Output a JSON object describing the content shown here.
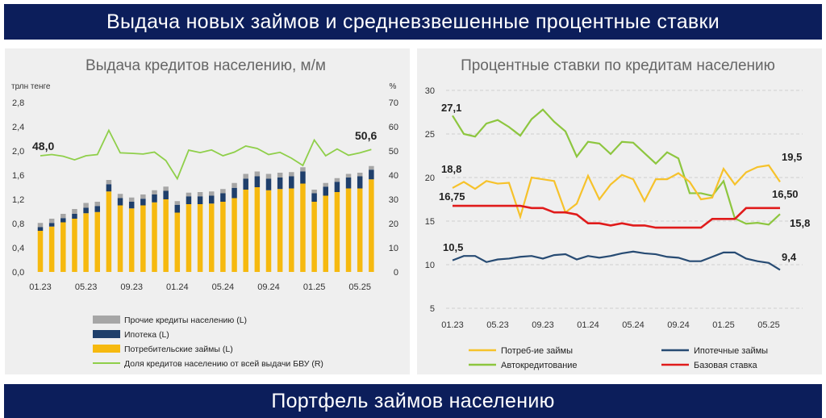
{
  "header": {
    "title": "Выдача новых займов и средневзвешенные процентные ставки"
  },
  "footer": {
    "title": "Портфель займов населению"
  },
  "colors": {
    "banner": "#0c1e5b",
    "panel": "#efefef",
    "consumer": "#f6b90f",
    "mortgage": "#1f3f6b",
    "other": "#a6a6a6",
    "share": "#8fcf4a",
    "consumer_rate": "#f6c22b",
    "mortgage_rate": "#274b73",
    "auto_rate": "#8dc63f",
    "base_rate": "#e01b1b"
  },
  "chart_data": [
    {
      "type": "bar",
      "title": "Выдача кредитов населению, м/м",
      "ylabel": "трлн тенге",
      "ylabel_right": "%",
      "ylim": [
        0,
        2.8
      ],
      "ylim_right": [
        0,
        70
      ],
      "yticks": [
        "2,8",
        "2,4",
        "2,0",
        "1,6",
        "1,2",
        "0,8",
        "0,4",
        "0,0"
      ],
      "yticks_right": [
        "70",
        "60",
        "50",
        "40",
        "30",
        "20",
        "10",
        "0"
      ],
      "x_tick_labels": [
        "01.23",
        "05.23",
        "09.23",
        "01.24",
        "05.24",
        "09.24",
        "01.25",
        "05.25"
      ],
      "x_tick_index": [
        0,
        4,
        8,
        12,
        16,
        20,
        24,
        28
      ],
      "n_categories": 30,
      "series": [
        {
          "name": "Потребительские займы (L)",
          "kind": "bar",
          "values": [
            0.68,
            0.75,
            0.82,
            0.88,
            0.97,
            0.99,
            1.33,
            1.1,
            1.05,
            1.1,
            1.15,
            1.2,
            0.98,
            1.12,
            1.12,
            1.13,
            1.16,
            1.22,
            1.36,
            1.4,
            1.35,
            1.37,
            1.38,
            1.46,
            1.16,
            1.26,
            1.32,
            1.38,
            1.38,
            1.53
          ]
        },
        {
          "name": "Ипотека (L)",
          "kind": "bar",
          "values": [
            0.06,
            0.06,
            0.07,
            0.08,
            0.09,
            0.1,
            0.12,
            0.12,
            0.11,
            0.11,
            0.13,
            0.14,
            0.13,
            0.13,
            0.13,
            0.13,
            0.14,
            0.17,
            0.18,
            0.18,
            0.19,
            0.19,
            0.2,
            0.2,
            0.14,
            0.15,
            0.17,
            0.18,
            0.2,
            0.16
          ]
        },
        {
          "name": "Прочие кредиты населению (L)",
          "kind": "bar",
          "values": [
            0.07,
            0.07,
            0.07,
            0.08,
            0.08,
            0.07,
            0.07,
            0.07,
            0.07,
            0.07,
            0.07,
            0.07,
            0.06,
            0.06,
            0.07,
            0.07,
            0.07,
            0.08,
            0.08,
            0.08,
            0.08,
            0.08,
            0.07,
            0.07,
            0.06,
            0.06,
            0.06,
            0.06,
            0.06,
            0.06
          ]
        },
        {
          "name": "Доля кредитов населению от всей выдачи БВУ (R)",
          "kind": "line",
          "values": [
            48.0,
            48.5,
            47.8,
            46.3,
            48.0,
            48.5,
            58.5,
            49.2,
            49.0,
            48.7,
            49.5,
            46.0,
            38.5,
            50.3,
            49.3,
            50.4,
            48.0,
            49.5,
            52.0,
            51.0,
            48.5,
            49.4,
            47.0,
            44.0,
            54.5,
            48.0,
            50.8,
            48.2,
            49.2,
            50.6
          ]
        }
      ],
      "annotations": [
        "48,0",
        "50,6"
      ]
    },
    {
      "type": "line",
      "title": "Процентные ставки по кредитам населению",
      "ylim": [
        5,
        30
      ],
      "yticks": [
        "30",
        "25",
        "20",
        "15",
        "10",
        "5"
      ],
      "x_tick_labels": [
        "01.23",
        "05.23",
        "09.23",
        "01.24",
        "05.24",
        "09.24",
        "01.25",
        "05.25"
      ],
      "x_tick_index": [
        0,
        4,
        8,
        12,
        16,
        20,
        24,
        28
      ],
      "n_categories": 30,
      "series": [
        {
          "name": "Потреб-ие займы",
          "values": [
            18.8,
            19.5,
            18.7,
            19.6,
            19.3,
            19.4,
            15.5,
            20.0,
            19.8,
            19.6,
            16.0,
            17.0,
            20.2,
            17.5,
            19.2,
            20.3,
            19.8,
            17.3,
            19.8,
            19.8,
            20.5,
            19.5,
            17.5,
            17.7,
            21.0,
            19.2,
            20.6,
            21.2,
            21.4,
            19.5
          ]
        },
        {
          "name": "Ипотечные займы",
          "values": [
            10.5,
            11.0,
            11.0,
            10.3,
            10.6,
            10.7,
            10.9,
            11.0,
            10.7,
            11.1,
            11.2,
            10.6,
            11.0,
            10.8,
            11.0,
            11.3,
            11.5,
            11.3,
            11.2,
            10.9,
            10.8,
            10.4,
            10.4,
            10.9,
            11.4,
            11.4,
            10.7,
            10.4,
            10.2,
            9.4
          ]
        },
        {
          "name": "Автокредитование",
          "values": [
            27.1,
            25.0,
            24.7,
            26.2,
            26.6,
            25.8,
            24.8,
            26.7,
            27.8,
            26.4,
            25.3,
            22.4,
            24.1,
            23.9,
            22.7,
            24.1,
            24.0,
            22.8,
            21.6,
            22.9,
            22.2,
            18.2,
            18.2,
            17.9,
            19.6,
            15.3,
            14.7,
            14.8,
            14.6,
            15.8
          ]
        },
        {
          "name": "Базовая ставка",
          "values": [
            16.75,
            16.75,
            16.75,
            16.75,
            16.75,
            16.75,
            16.75,
            16.5,
            16.5,
            16.0,
            16.0,
            15.75,
            14.75,
            14.75,
            14.5,
            14.75,
            14.5,
            14.5,
            14.25,
            14.25,
            14.25,
            14.25,
            14.25,
            15.25,
            15.25,
            15.25,
            16.5,
            16.5,
            16.5,
            16.5
          ]
        }
      ],
      "annotations": [
        "27,1",
        "18,8",
        "16,75",
        "10,5",
        "19,5",
        "16,50",
        "15,8",
        "9,4"
      ]
    }
  ]
}
